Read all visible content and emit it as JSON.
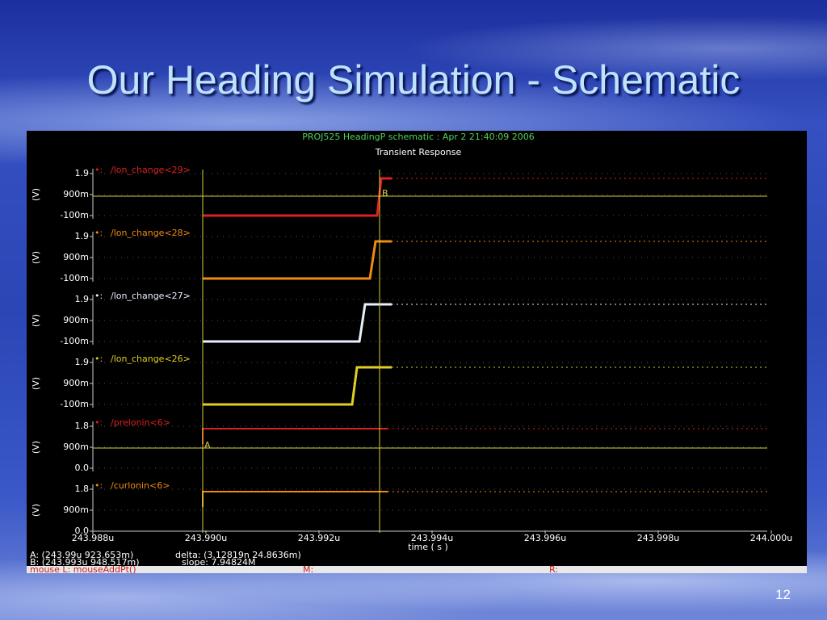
{
  "slide_title": "Our Heading Simulation - Schematic",
  "page_number": "12",
  "screenshot": {
    "header": "PROJ525 HeadingP schematic : Apr  2 21:40:09 2006",
    "subtitle": "Transient Response",
    "panels": [
      {
        "signal": "/lon_change<29>",
        "yticks": [
          "1.9",
          "900m",
          "-100m"
        ],
        "y_axis_label": "(V)"
      },
      {
        "signal": "/lon_change<28>",
        "yticks": [
          "1.9",
          "900m",
          "-100m"
        ],
        "y_axis_label": "(V)"
      },
      {
        "signal": "/lon_change<27>",
        "yticks": [
          "1.9",
          "900m",
          "-100m"
        ],
        "y_axis_label": "(V)"
      },
      {
        "signal": "/lon_change<26>",
        "yticks": [
          "1.9",
          "900m",
          "-100m"
        ],
        "y_axis_label": "(V)"
      },
      {
        "signal": "/prelonin<6>",
        "yticks": [
          "1.8",
          "900m",
          "0.0"
        ],
        "y_axis_label": "(V)"
      },
      {
        "signal": "/curlonin<6>",
        "yticks": [
          "1.8",
          "900m",
          "0.0"
        ],
        "y_axis_label": "(V)"
      }
    ],
    "xticks": [
      "243.988u",
      "243.990u",
      "243.992u",
      "243.994u",
      "243.996u",
      "243.998u",
      "244.000u"
    ],
    "x_axis_label": "time ( s )",
    "cursor_a": "A",
    "cursor_b": "B",
    "status": {
      "a": "A: (243.99u 923.653m)",
      "delta": "delta: (3.12819n 24.8636m)",
      "b": "B: (243.993u 948.517m)",
      "slope": "slope: 7.94824M"
    },
    "footer": {
      "mouse_l": "mouse L: mouseAddPt()",
      "m": "M:",
      "r": "R:"
    }
  }
}
